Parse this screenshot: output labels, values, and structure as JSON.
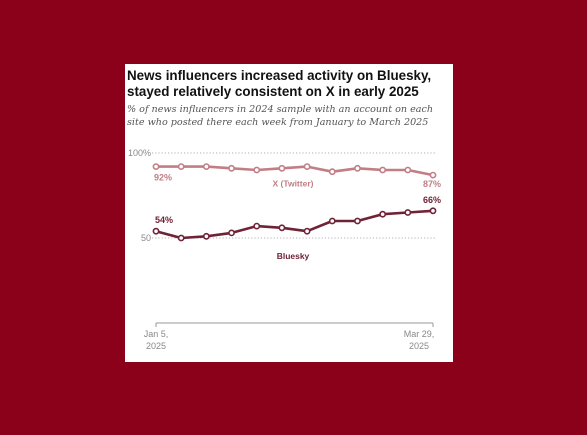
{
  "chart_data": {
    "type": "line",
    "title": "News influencers increased activity on Bluesky, stayed relatively consistent on X in early 2025",
    "subtitle": "% of news influencers in 2024 sample with an account on each site who posted there each week from January to March 2025",
    "x_tick_labels": [
      {
        "line1": "Jan 5,",
        "line2": "2025"
      },
      {
        "line1": "Mar 29,",
        "line2": "2025"
      }
    ],
    "y_tick_labels": [
      "100%",
      "50"
    ],
    "ylim": [
      0,
      100
    ],
    "grid": true,
    "legend": "inline",
    "weeks": 12,
    "series": [
      {
        "name": "X (Twitter)",
        "color": "#c17e85",
        "values": [
          92,
          92,
          92,
          91,
          90,
          91,
          92,
          89,
          91,
          90,
          90,
          87
        ],
        "first_label": "92%",
        "last_label": "87%"
      },
      {
        "name": "Bluesky",
        "color": "#6e2336",
        "values": [
          54,
          50,
          51,
          53,
          57,
          56,
          54,
          60,
          60,
          64,
          65,
          66
        ],
        "first_label": "54%",
        "last_label": "66%"
      }
    ]
  }
}
